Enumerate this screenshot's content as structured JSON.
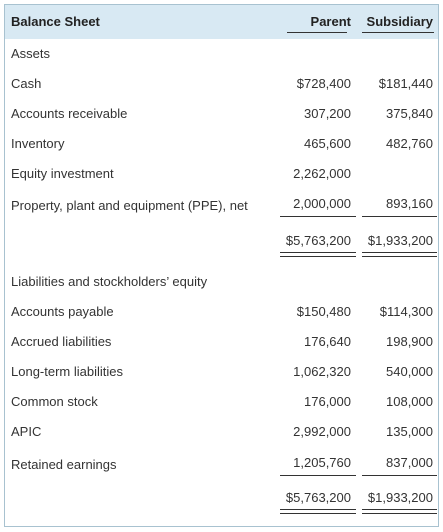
{
  "header": {
    "title": "Balance Sheet",
    "col_parent": "Parent",
    "col_subsidiary": "Subsidiary"
  },
  "assets": {
    "heading": "Assets",
    "rows": [
      {
        "label": "Cash",
        "parent": "$728,400",
        "subsidiary": "$181,440"
      },
      {
        "label": "Accounts receivable",
        "parent": "307,200",
        "subsidiary": "375,840"
      },
      {
        "label": "Inventory",
        "parent": "465,600",
        "subsidiary": "482,760"
      },
      {
        "label": "Equity investment",
        "parent": "2,262,000",
        "subsidiary": ""
      },
      {
        "label": "Property, plant and equipment (PPE), net",
        "parent": "2,000,000",
        "subsidiary": "893,160"
      }
    ],
    "total_parent": "$5,763,200",
    "total_subsidiary": "$1,933,200"
  },
  "liabilities": {
    "heading": "Liabilities and stockholders’ equity",
    "rows": [
      {
        "label": "Accounts payable",
        "parent": "$150,480",
        "subsidiary": "$114,300"
      },
      {
        "label": "Accrued liabilities",
        "parent": "176,640",
        "subsidiary": "198,900"
      },
      {
        "label": "Long-term liabilities",
        "parent": "1,062,320",
        "subsidiary": "540,000"
      },
      {
        "label": "Common stock",
        "parent": "176,000",
        "subsidiary": "108,000"
      },
      {
        "label": "APIC",
        "parent": "2,992,000",
        "subsidiary": "135,000"
      },
      {
        "label": "Retained earnings",
        "parent": "1,205,760",
        "subsidiary": "837,000"
      }
    ],
    "total_parent": "$5,763,200",
    "total_subsidiary": "$1,933,200"
  }
}
